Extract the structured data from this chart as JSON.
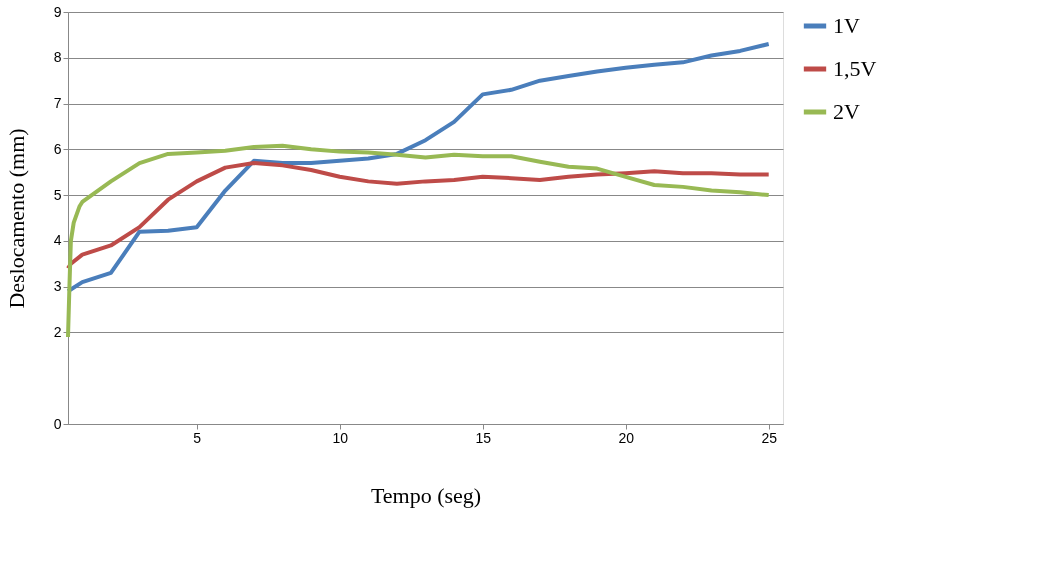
{
  "chart_data": {
    "type": "line",
    "xlabel": "Tempo (seg)",
    "ylabel": "Deslocamento (mm)",
    "xlim": [
      0.5,
      25.5
    ],
    "xticks": [
      5,
      10,
      15,
      20,
      25
    ],
    "ylim": [
      0,
      9
    ],
    "yticks": [
      0,
      2,
      3,
      4,
      5,
      6,
      7,
      8,
      9
    ],
    "grid": "y",
    "legend": "right",
    "marker": "none",
    "line_style": "solid",
    "series": [
      {
        "name": "1V",
        "color": "#4a7ebb",
        "x": [
          0.5,
          1,
          2,
          3,
          4,
          5,
          6,
          7,
          8,
          9,
          10,
          11,
          12,
          13,
          14,
          15,
          16,
          17,
          18,
          19,
          20,
          21,
          22,
          23,
          24,
          25
        ],
        "values": [
          2.9,
          3.1,
          3.3,
          4.2,
          4.22,
          4.3,
          5.1,
          5.75,
          5.7,
          5.7,
          5.75,
          5.8,
          5.9,
          6.2,
          6.6,
          7.2,
          7.3,
          7.5,
          7.6,
          7.7,
          7.78,
          7.85,
          7.9,
          8.05,
          8.15,
          8.3
        ]
      },
      {
        "name": "1,5V",
        "color": "#be4b48",
        "x": [
          0.5,
          0.6,
          1,
          2,
          3,
          4,
          5,
          6,
          7,
          8,
          9,
          10,
          11,
          12,
          13,
          14,
          15,
          16,
          17,
          18,
          19,
          20,
          21,
          22,
          23,
          24,
          25
        ],
        "values": [
          3.4,
          3.5,
          3.7,
          3.9,
          4.3,
          4.9,
          5.3,
          5.6,
          5.7,
          5.65,
          5.55,
          5.4,
          5.3,
          5.25,
          5.3,
          5.33,
          5.4,
          5.37,
          5.33,
          5.4,
          5.45,
          5.48,
          5.52,
          5.48,
          5.48,
          5.45,
          5.45
        ]
      },
      {
        "name": "2V",
        "color": "#98b954",
        "x": [
          0.5,
          0.55,
          0.6,
          0.7,
          0.9,
          1,
          2,
          3,
          4,
          5,
          6,
          7,
          8,
          9,
          10,
          11,
          12,
          13,
          14,
          15,
          16,
          17,
          18,
          19,
          20,
          21,
          22,
          23,
          24,
          25
        ],
        "values": [
          1.9,
          3.0,
          4.0,
          4.4,
          4.75,
          4.85,
          5.3,
          5.7,
          5.9,
          5.93,
          5.97,
          6.05,
          6.08,
          6.0,
          5.95,
          5.93,
          5.88,
          5.82,
          5.88,
          5.85,
          5.85,
          5.73,
          5.62,
          5.58,
          5.4,
          5.22,
          5.18,
          5.1,
          5.06,
          5.0
        ]
      }
    ]
  }
}
